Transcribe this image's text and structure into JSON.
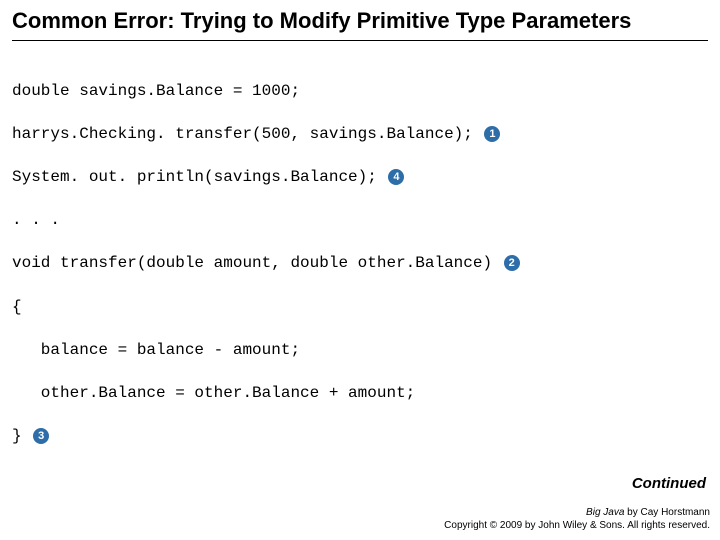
{
  "title": "Common Error: Trying to Modify Primitive Type Parameters",
  "code": {
    "l1": "double savings.Balance = 1000;",
    "l2": "harrys.Checking. transfer(500, savings.Balance); ",
    "l3": "System. out. println(savings.Balance); ",
    "l4": ". . .",
    "l5": "void transfer(double amount, double other.Balance) ",
    "l6": "{",
    "l7": "   balance = balance - amount;",
    "l8": "   other.Balance = other.Balance + amount;",
    "l9": "} "
  },
  "markers": {
    "m1": "1",
    "m2": "2",
    "m3": "3",
    "m4": "4"
  },
  "marker_style": {
    "bg": "#2e6ea8",
    "fg": "#ffffff"
  },
  "continued": "Continued",
  "footer": {
    "book": "Big Java",
    "byline": " by Cay Horstmann",
    "copyright": "Copyright © 2009 by John Wiley & Sons. All rights reserved."
  }
}
